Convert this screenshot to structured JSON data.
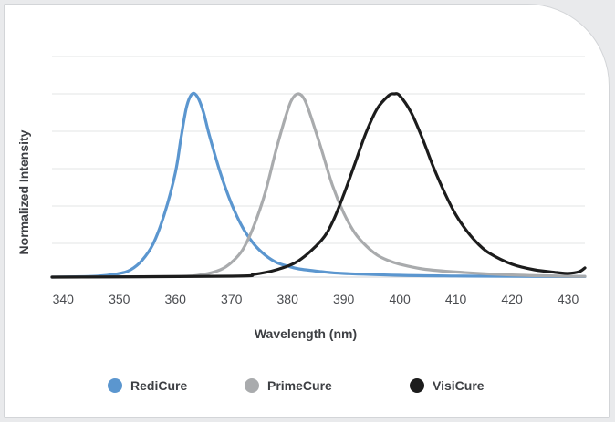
{
  "chart_data": {
    "type": "line",
    "xlabel": "Wavelength (nm)",
    "ylabel": "Normalized Intensity",
    "xlim": [
      338,
      433
    ],
    "ylim": [
      0,
      1
    ],
    "x_ticks": [
      340,
      350,
      360,
      370,
      380,
      390,
      400,
      410,
      420,
      430
    ],
    "grid": true,
    "legend_position": "bottom",
    "series": [
      {
        "name": "RediCure",
        "color": "#5b96cf",
        "x": [
          338,
          346,
          350,
          352,
          354,
          356,
          358,
          360,
          361,
          362,
          363,
          364,
          365,
          366,
          368,
          370,
          372,
          374,
          376,
          378,
          380,
          382,
          386,
          390,
          400,
          410,
          420,
          430,
          433
        ],
        "y": [
          0.0,
          0.005,
          0.02,
          0.04,
          0.09,
          0.18,
          0.34,
          0.57,
          0.76,
          0.93,
          1.0,
          0.98,
          0.9,
          0.78,
          0.57,
          0.4,
          0.27,
          0.18,
          0.12,
          0.08,
          0.06,
          0.045,
          0.03,
          0.02,
          0.01,
          0.006,
          0.004,
          0.003,
          0.003
        ]
      },
      {
        "name": "PrimeCure",
        "color": "#a9abad",
        "x": [
          338,
          360,
          365,
          368,
          370,
          372,
          374,
          376,
          378,
          380,
          381,
          382,
          383,
          384,
          386,
          388,
          390,
          392,
          394,
          396,
          398,
          400,
          404,
          410,
          420,
          430,
          433
        ],
        "y": [
          0.0,
          0.004,
          0.015,
          0.04,
          0.08,
          0.15,
          0.28,
          0.46,
          0.7,
          0.91,
          0.98,
          1.0,
          0.97,
          0.89,
          0.7,
          0.5,
          0.35,
          0.24,
          0.17,
          0.12,
          0.09,
          0.07,
          0.045,
          0.028,
          0.012,
          0.005,
          0.004
        ]
      },
      {
        "name": "VisiCure",
        "color": "#1c1c1c",
        "x": [
          338,
          370,
          374,
          378,
          382,
          386,
          388,
          390,
          392,
          394,
          396,
          398,
          399,
          400,
          402,
          404,
          406,
          408,
          410,
          412,
          414,
          416,
          420,
          424,
          428,
          430,
          432,
          433
        ],
        "y": [
          0.0,
          0.005,
          0.015,
          0.04,
          0.09,
          0.2,
          0.3,
          0.45,
          0.62,
          0.79,
          0.92,
          0.99,
          1.0,
          0.99,
          0.9,
          0.76,
          0.6,
          0.46,
          0.34,
          0.25,
          0.18,
          0.13,
          0.07,
          0.04,
          0.025,
          0.02,
          0.03,
          0.05
        ]
      }
    ]
  }
}
